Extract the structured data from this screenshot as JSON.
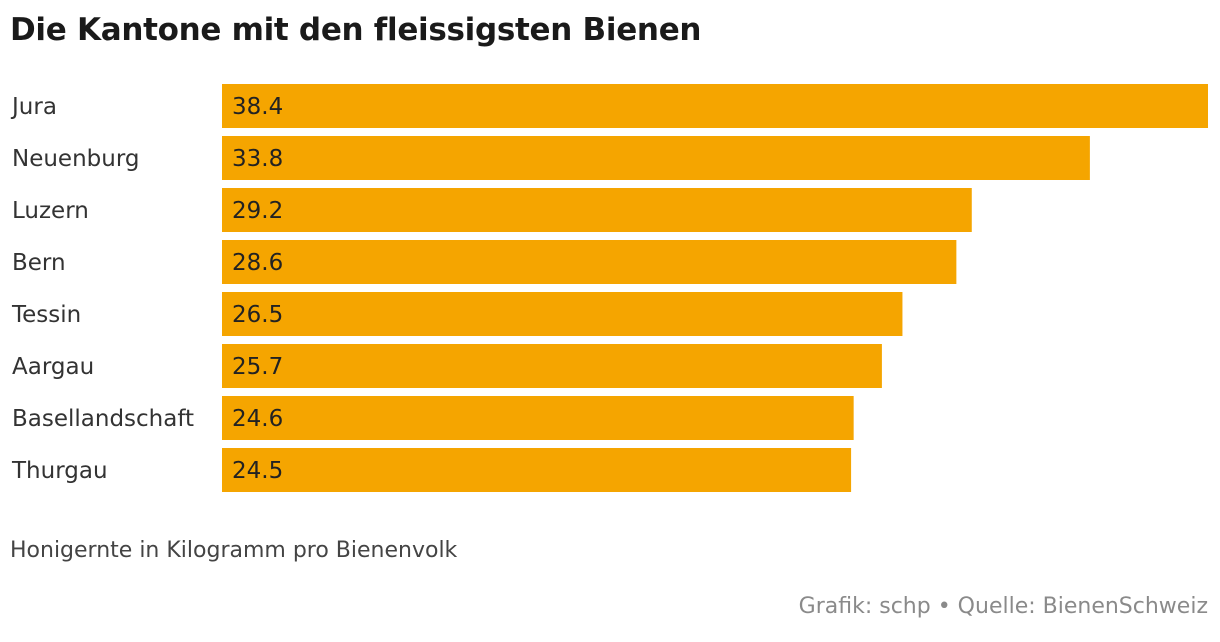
{
  "chart_data": {
    "type": "bar",
    "orientation": "horizontal",
    "title": "Die Kantone mit den fleissigsten Bienen",
    "categories": [
      "Jura",
      "Neuenburg",
      "Luzern",
      "Bern",
      "Tessin",
      "Aargau",
      "Basellandschaft",
      "Thurgau"
    ],
    "values": [
      38.4,
      33.8,
      29.2,
      28.6,
      26.5,
      25.7,
      24.6,
      24.5
    ],
    "value_labels": [
      "38.4",
      "33.8",
      "29.2",
      "28.6",
      "26.5",
      "25.7",
      "24.6",
      "24.5"
    ],
    "xlim": [
      0,
      38.4
    ],
    "grid": false,
    "bar_color": "#f5a500",
    "note": "Honigernte in Kilogramm pro Bienenvolk",
    "source": "Grafik: schp • Quelle: BienenSchweiz"
  }
}
